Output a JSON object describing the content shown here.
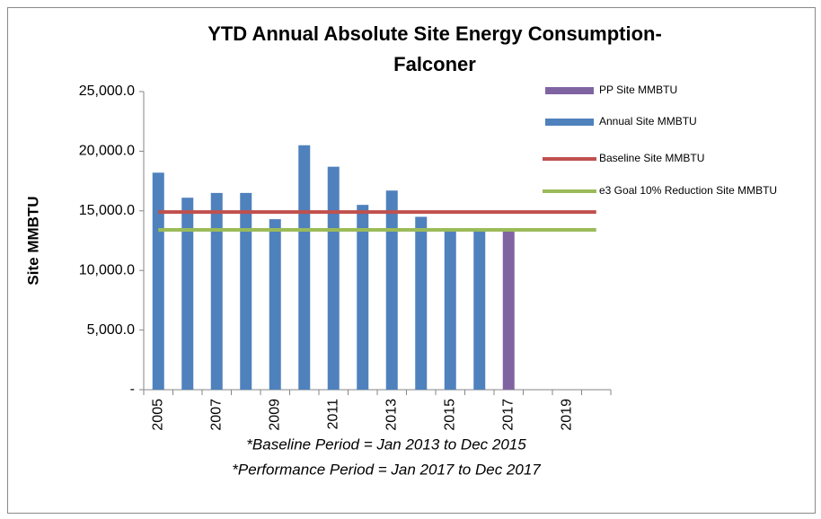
{
  "chart_data": {
    "type": "bar",
    "title": [
      "YTD Annual Absolute Site Energy Consumption-",
      "Falconer"
    ],
    "y_label": "Site MMBTU",
    "annotations": [
      "*Baseline Period = Jan 2013 to Dec 2015",
      "*Performance Period = Jan 2017 to Dec 2017"
    ],
    "categories": [
      "2005",
      null,
      "2007",
      null,
      "2009",
      null,
      "2011",
      null,
      "2013",
      null,
      "2015",
      null,
      "2017",
      null,
      "2019",
      null
    ],
    "series": [
      {
        "name": "PP Site MMBTU",
        "type": "bar",
        "color": "#8064a2",
        "values": [
          null,
          null,
          null,
          null,
          null,
          null,
          null,
          null,
          null,
          null,
          null,
          null,
          13400,
          null,
          null,
          null
        ]
      },
      {
        "name": "Annual Site MMBTU",
        "type": "bar",
        "color": "#4f81bd",
        "values": [
          18200,
          16100,
          16500,
          16500,
          14300,
          20500,
          18700,
          15500,
          16700,
          14500,
          13300,
          13300,
          null,
          null,
          null,
          null
        ]
      },
      {
        "name": "Baseline Site MMBTU",
        "type": "line",
        "color": "#c0504d",
        "values": [
          14900,
          14900,
          14900,
          14900,
          14900,
          14900,
          14900,
          14900,
          14900,
          14900,
          14900,
          14900,
          14900,
          14900,
          14900,
          14900
        ]
      },
      {
        "name": "e3 Goal 10% Reduction Site MMBTU",
        "type": "line",
        "color": "#9bbb59",
        "values": [
          13400,
          13400,
          13400,
          13400,
          13400,
          13400,
          13400,
          13400,
          13400,
          13400,
          13400,
          13400,
          13400,
          13400,
          13400,
          13400
        ]
      }
    ],
    "ylim": [
      0,
      25000
    ],
    "yticks": [
      {
        "value": 0,
        "label": "-"
      },
      {
        "value": 5000,
        "label": "5,000.0"
      },
      {
        "value": 10000,
        "label": "10,000.0"
      },
      {
        "value": 15000,
        "label": "15,000.0"
      },
      {
        "value": 20000,
        "label": "20,000.0"
      },
      {
        "value": 25000,
        "label": "25,000.0"
      }
    ],
    "grid": false,
    "legend": "right"
  }
}
